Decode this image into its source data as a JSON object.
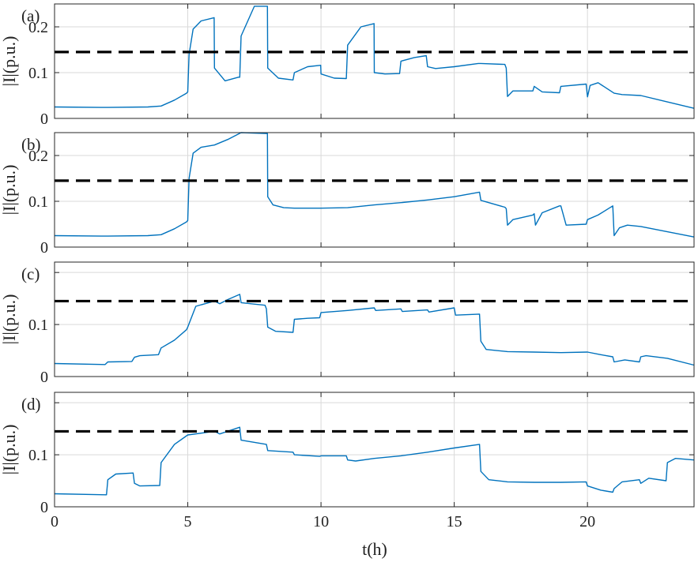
{
  "xlabel": "t(h)",
  "ylabel": "|I|(p.u.)",
  "colors": {
    "series": "#0072BD",
    "threshold": "#000000",
    "grid": "#d9d9d9",
    "axes": "#262626"
  },
  "chart_data": [
    {
      "type": "line",
      "panel_label": "(a)",
      "xlim": [
        0,
        24
      ],
      "ylim": [
        0,
        0.25
      ],
      "xticks": [
        0,
        5,
        10,
        15,
        20
      ],
      "yticks": [
        0,
        0.1,
        0.2
      ],
      "ytick_labels": [
        "0",
        "0.1",
        "0.2"
      ],
      "grid": true,
      "threshold": 0.145,
      "x": [
        0,
        2,
        3.5,
        4,
        4.5,
        4.95,
        5.0,
        5.05,
        5.2,
        5.5,
        5.99,
        6.0,
        6.4,
        6.9,
        6.95,
        7.0,
        7.5,
        7.99,
        8.0,
        8.4,
        8.95,
        9.0,
        9.5,
        9.99,
        10.0,
        10.5,
        10.95,
        11.0,
        11.5,
        11.99,
        12.0,
        12.4,
        12.95,
        13.0,
        13.5,
        13.95,
        14.0,
        14.3,
        15,
        15.9,
        16.0,
        16.9,
        16.95,
        17.0,
        17.2,
        17.5,
        17.95,
        18.0,
        18.3,
        18.95,
        19.0,
        19.95,
        20.0,
        20.1,
        20.4,
        21,
        21.3,
        22,
        24
      ],
      "y": [
        0.025,
        0.024,
        0.025,
        0.027,
        0.04,
        0.055,
        0.058,
        0.14,
        0.195,
        0.213,
        0.22,
        0.11,
        0.082,
        0.09,
        0.09,
        0.18,
        0.245,
        0.245,
        0.11,
        0.088,
        0.084,
        0.1,
        0.113,
        0.116,
        0.097,
        0.088,
        0.087,
        0.16,
        0.2,
        0.207,
        0.1,
        0.097,
        0.098,
        0.125,
        0.133,
        0.137,
        0.113,
        0.109,
        0.113,
        0.12,
        0.12,
        0.118,
        0.11,
        0.048,
        0.06,
        0.06,
        0.06,
        0.07,
        0.058,
        0.056,
        0.07,
        0.075,
        0.047,
        0.072,
        0.078,
        0.055,
        0.052,
        0.05,
        0.022
      ]
    },
    {
      "type": "line",
      "panel_label": "(b)",
      "xlim": [
        0,
        24
      ],
      "ylim": [
        0,
        0.25
      ],
      "xticks": [
        0,
        5,
        10,
        15,
        20
      ],
      "yticks": [
        0,
        0.1,
        0.2
      ],
      "ytick_labels": [
        "0",
        "0.1",
        "0.2"
      ],
      "grid": true,
      "threshold": 0.145,
      "x": [
        0,
        2,
        3.5,
        4,
        4.5,
        4.95,
        5.0,
        5.05,
        5.2,
        5.5,
        6.0,
        6.5,
        7.0,
        7.99,
        8.0,
        8.2,
        8.6,
        9,
        10,
        11,
        12,
        13,
        14,
        15,
        15.95,
        16.0,
        16.9,
        16.95,
        17.0,
        17.2,
        17.95,
        18.0,
        18.05,
        18.3,
        18.95,
        19.0,
        19.2,
        19.95,
        20.0,
        20.4,
        20.95,
        21.0,
        21.2,
        21.5,
        22,
        24
      ],
      "y": [
        0.025,
        0.024,
        0.025,
        0.027,
        0.04,
        0.055,
        0.058,
        0.15,
        0.205,
        0.218,
        0.223,
        0.235,
        0.25,
        0.248,
        0.11,
        0.092,
        0.086,
        0.085,
        0.085,
        0.086,
        0.092,
        0.097,
        0.103,
        0.11,
        0.12,
        0.102,
        0.087,
        0.084,
        0.048,
        0.06,
        0.07,
        0.073,
        0.048,
        0.075,
        0.09,
        0.09,
        0.048,
        0.05,
        0.06,
        0.07,
        0.09,
        0.025,
        0.042,
        0.048,
        0.045,
        0.022
      ]
    },
    {
      "type": "line",
      "panel_label": "(c)",
      "xlim": [
        0,
        24
      ],
      "ylim": [
        0,
        0.22
      ],
      "xticks": [
        0,
        5,
        10,
        15,
        20
      ],
      "yticks": [
        0,
        0.1,
        0.2
      ],
      "ytick_labels": [
        "0",
        "0.1",
        ""
      ],
      "grid": true,
      "threshold": 0.145,
      "x": [
        0,
        1.9,
        2.0,
        2.9,
        3.0,
        3.2,
        3.9,
        4.0,
        4.5,
        4.95,
        5.0,
        5.3,
        6.0,
        6.2,
        6.5,
        6.95,
        7.0,
        7.9,
        7.95,
        8.0,
        8.3,
        8.95,
        9.0,
        9.5,
        9.95,
        10.0,
        11,
        12,
        12.05,
        13,
        13.05,
        14,
        14.05,
        15,
        15.05,
        15.95,
        16.0,
        16.2,
        17,
        18,
        19,
        20,
        20.5,
        20.95,
        21.0,
        21.4,
        21.95,
        22.0,
        22.2,
        23,
        24
      ],
      "y": [
        0.025,
        0.023,
        0.028,
        0.029,
        0.037,
        0.04,
        0.042,
        0.055,
        0.07,
        0.09,
        0.095,
        0.135,
        0.145,
        0.14,
        0.148,
        0.158,
        0.142,
        0.137,
        0.13,
        0.095,
        0.087,
        0.085,
        0.11,
        0.112,
        0.113,
        0.123,
        0.127,
        0.132,
        0.127,
        0.13,
        0.125,
        0.128,
        0.124,
        0.132,
        0.118,
        0.12,
        0.068,
        0.052,
        0.048,
        0.047,
        0.046,
        0.047,
        0.042,
        0.038,
        0.028,
        0.032,
        0.028,
        0.038,
        0.04,
        0.035,
        0.022
      ]
    },
    {
      "type": "line",
      "panel_label": "(d)",
      "xlim": [
        0,
        24
      ],
      "ylim": [
        0,
        0.22
      ],
      "xticks": [
        0,
        5,
        10,
        15,
        20
      ],
      "yticks": [
        0,
        0.1,
        0.2
      ],
      "ytick_labels": [
        "0",
        "0.1",
        ""
      ],
      "grid": true,
      "threshold": 0.145,
      "x": [
        0,
        1.95,
        2.0,
        2.3,
        2.95,
        3.0,
        3.2,
        3.95,
        4.0,
        4.5,
        5,
        6.0,
        6.2,
        6.95,
        7.0,
        7.95,
        8.0,
        8.95,
        9.0,
        9.95,
        10.0,
        10.95,
        11.0,
        11.3,
        12,
        13,
        14,
        15,
        15.95,
        16.0,
        16.3,
        17,
        18,
        19,
        19.95,
        20.0,
        20.5,
        20.95,
        21.0,
        21.3,
        21.95,
        22.0,
        22.3,
        22.95,
        23.0,
        23.3,
        24
      ],
      "y": [
        0.025,
        0.023,
        0.052,
        0.063,
        0.065,
        0.045,
        0.04,
        0.041,
        0.085,
        0.12,
        0.138,
        0.145,
        0.14,
        0.153,
        0.128,
        0.12,
        0.108,
        0.105,
        0.1,
        0.097,
        0.098,
        0.098,
        0.09,
        0.088,
        0.093,
        0.098,
        0.105,
        0.113,
        0.12,
        0.068,
        0.052,
        0.048,
        0.047,
        0.047,
        0.048,
        0.04,
        0.032,
        0.028,
        0.035,
        0.048,
        0.052,
        0.045,
        0.055,
        0.05,
        0.085,
        0.093,
        0.09
      ]
    }
  ]
}
